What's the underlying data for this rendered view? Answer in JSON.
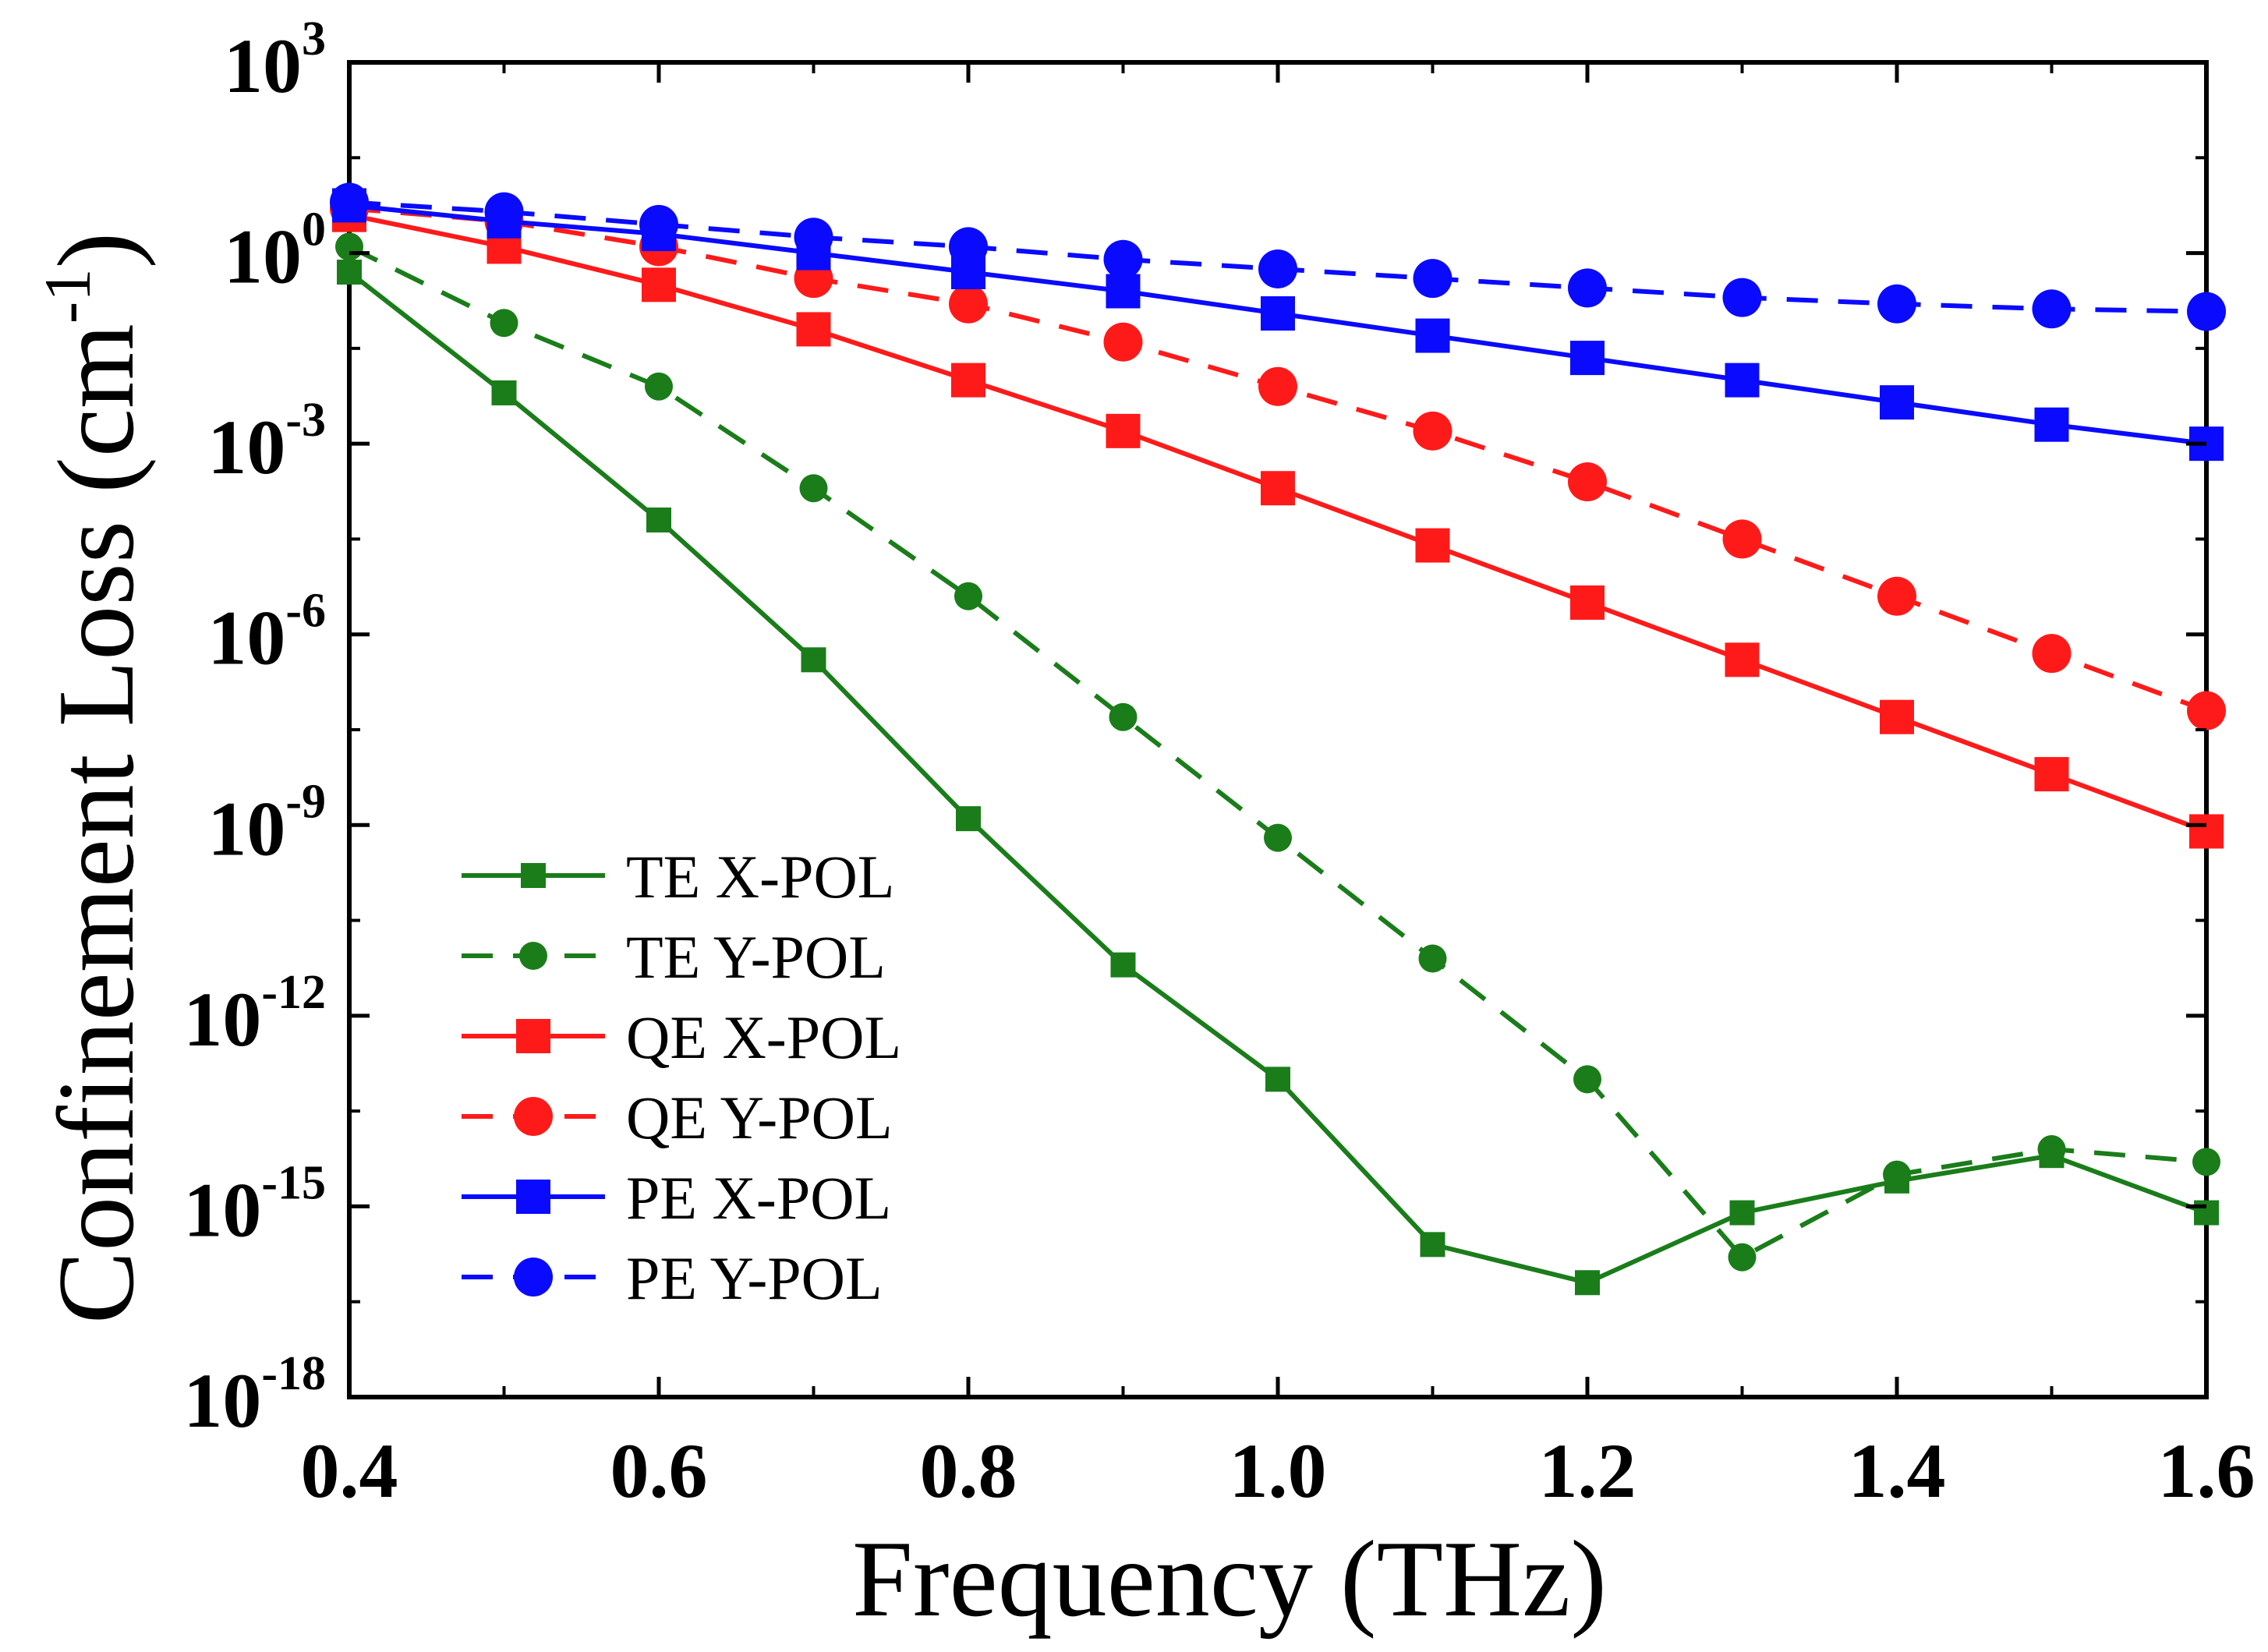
{
  "chart_data": {
    "type": "line",
    "title": "",
    "xlabel": "Frequency (THz)",
    "ylabel_main": "Confinement Loss (cm",
    "ylabel_sup": "-1",
    "ylabel_close": ")",
    "xlim": [
      0.4,
      1.6
    ],
    "ylim_log10": [
      -18,
      3
    ],
    "yscale": "log",
    "x_ticks": [
      0.4,
      0.6,
      0.8,
      1.0,
      1.2,
      1.4,
      1.6
    ],
    "x_tick_labels": [
      "0.4",
      "0.6",
      "0.8",
      "1.0",
      "1.2",
      "1.4",
      "1.6"
    ],
    "y_ticks": [
      {
        "base": "10",
        "exp": "3",
        "log": 3
      },
      {
        "base": "10",
        "exp": "0",
        "log": 0
      },
      {
        "base": "10",
        "exp": "-3",
        "log": -3
      },
      {
        "base": "10",
        "exp": "-6",
        "log": -6
      },
      {
        "base": "10",
        "exp": "-9",
        "log": -9
      },
      {
        "base": "10",
        "exp": "-12",
        "log": -12
      },
      {
        "base": "10",
        "exp": "-15",
        "log": -15
      },
      {
        "base": "10",
        "exp": "-18",
        "log": -18
      }
    ],
    "legend_position": "lower-left",
    "x": [
      0.4,
      0.5,
      0.6,
      0.7,
      0.8,
      0.9,
      1.0,
      1.1,
      1.2,
      1.3,
      1.4,
      1.5,
      1.6
    ],
    "series": [
      {
        "name": "TE X-POL",
        "color": "#1a7d1a",
        "dash": "solid",
        "marker": "square",
        "size": "small",
        "log10_values": [
          -0.3,
          -2.2,
          -4.2,
          -6.4,
          -8.9,
          -11.2,
          -13.0,
          -15.6,
          -16.2,
          -15.1,
          -14.6,
          -14.2,
          -15.1
        ]
      },
      {
        "name": "TE Y-POL",
        "color": "#1a7d1a",
        "dash": "dashed",
        "marker": "circle",
        "size": "small",
        "log10_values": [
          0.1,
          -1.1,
          -2.1,
          -3.7,
          -5.4,
          -7.3,
          -9.2,
          -11.1,
          -13.0,
          -15.8,
          -14.5,
          -14.1,
          -14.3
        ]
      },
      {
        "name": "QE X-POL",
        "color": "#ff1a1a",
        "dash": "solid",
        "marker": "square",
        "size": "large",
        "log10_values": [
          0.6,
          0.1,
          -0.5,
          -1.2,
          -2.0,
          -2.8,
          -3.7,
          -4.6,
          -5.5,
          -6.4,
          -7.3,
          -8.2,
          -9.1
        ]
      },
      {
        "name": "QE Y-POL",
        "color": "#ff1a1a",
        "dash": "dashed",
        "marker": "circle",
        "size": "large",
        "log10_values": [
          0.7,
          0.5,
          0.1,
          -0.4,
          -0.8,
          -1.4,
          -2.1,
          -2.8,
          -3.6,
          -4.5,
          -5.4,
          -6.3,
          -7.2
        ]
      },
      {
        "name": "PE X-POL",
        "color": "#0a0aff",
        "dash": "solid",
        "marker": "square",
        "size": "large",
        "log10_values": [
          0.75,
          0.5,
          0.3,
          0.0,
          -0.3,
          -0.6,
          -0.95,
          -1.3,
          -1.65,
          -2.0,
          -2.35,
          -2.7,
          -3.0
        ]
      },
      {
        "name": "PE Y-POL",
        "color": "#0a0aff",
        "dash": "dashed",
        "marker": "circle",
        "size": "large",
        "log10_values": [
          0.8,
          0.65,
          0.45,
          0.25,
          0.1,
          -0.1,
          -0.25,
          -0.4,
          -0.55,
          -0.7,
          -0.8,
          -0.88,
          -0.92
        ]
      }
    ]
  }
}
